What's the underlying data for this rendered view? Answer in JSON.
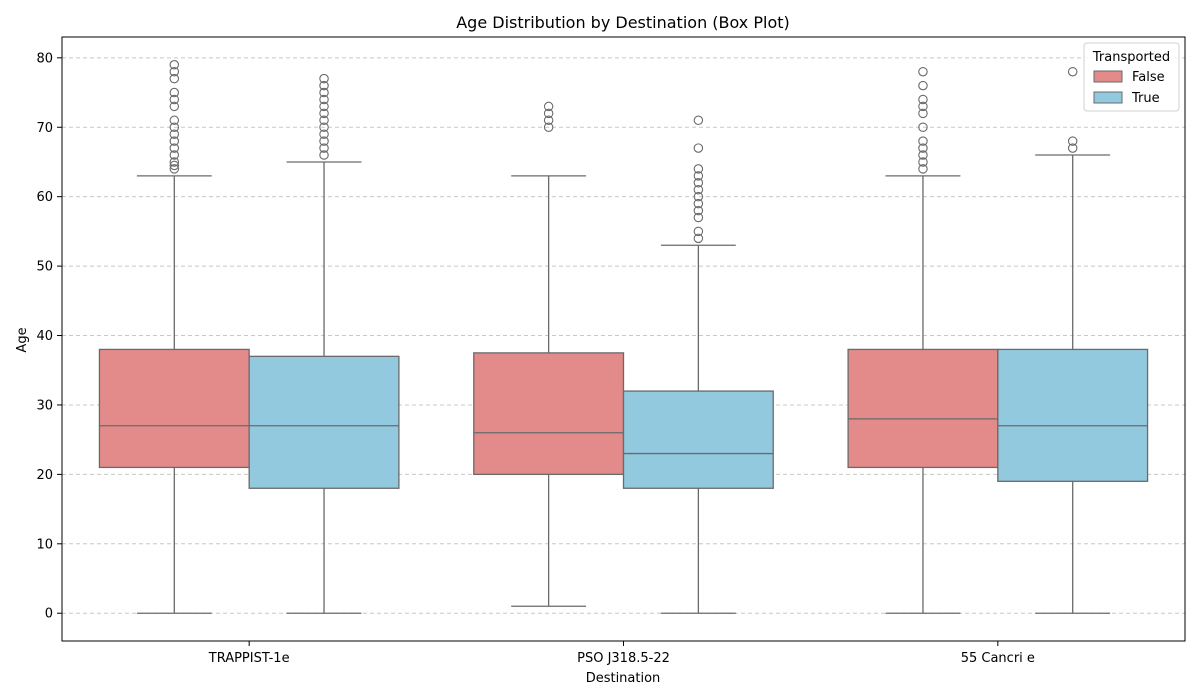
{
  "chart_data": {
    "type": "box",
    "title": "Age Distribution by Destination (Box Plot)",
    "xlabel": "Destination",
    "ylabel": "Age",
    "ylim": [
      -4,
      83
    ],
    "yticks": [
      0,
      10,
      20,
      30,
      40,
      50,
      60,
      70,
      80
    ],
    "grid": "horizontal-dashed",
    "legend": {
      "title": "Transported",
      "placement": "top-right"
    },
    "categories": [
      "TRAPPIST-1e",
      "PSO J318.5-22",
      "55 Cancri e"
    ],
    "series": [
      {
        "name": "False",
        "color": "#e38a8a",
        "boxes": [
          {
            "whislo": 0,
            "q1": 21,
            "med": 27,
            "q3": 38,
            "whishi": 63,
            "fliers": [
              64,
              64.5,
              65,
              66,
              67,
              68,
              69,
              70,
              71,
              73,
              74,
              75,
              77,
              78,
              79
            ]
          },
          {
            "whislo": 1,
            "q1": 20,
            "med": 26,
            "q3": 37.5,
            "whishi": 63,
            "fliers": [
              70,
              71,
              72,
              73
            ]
          },
          {
            "whislo": 0,
            "q1": 21,
            "med": 28,
            "q3": 38,
            "whishi": 63,
            "fliers": [
              64,
              65,
              66,
              67,
              68,
              70,
              72,
              73,
              74,
              76,
              78
            ]
          }
        ]
      },
      {
        "name": "True",
        "color": "#93c9df",
        "boxes": [
          {
            "whislo": 0,
            "q1": 18,
            "med": 27,
            "q3": 37,
            "whishi": 65,
            "fliers": [
              66,
              67,
              68,
              69,
              70,
              71,
              72,
              73,
              74,
              75,
              76,
              77
            ]
          },
          {
            "whislo": 0,
            "q1": 18,
            "med": 23,
            "q3": 32,
            "whishi": 53,
            "fliers": [
              54,
              55,
              57,
              58,
              59,
              60,
              61,
              62,
              63,
              64,
              67,
              71
            ]
          },
          {
            "whislo": 0,
            "q1": 19,
            "med": 27,
            "q3": 38,
            "whishi": 66,
            "fliers": [
              67,
              68,
              78
            ]
          }
        ]
      }
    ]
  }
}
